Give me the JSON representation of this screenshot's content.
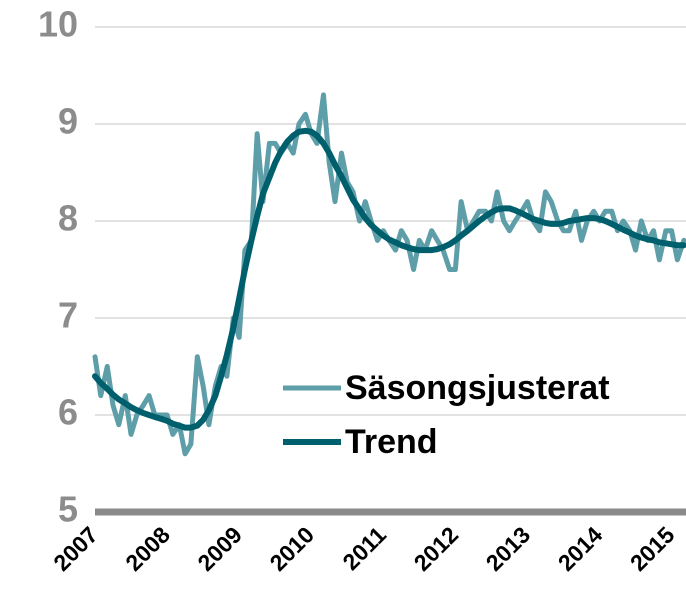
{
  "chart_data": {
    "type": "line",
    "x": [
      2007,
      2007.08,
      2007.17,
      2007.25,
      2007.33,
      2007.42,
      2007.5,
      2007.58,
      2007.67,
      2007.75,
      2007.83,
      2007.92,
      2008,
      2008.08,
      2008.17,
      2008.25,
      2008.33,
      2008.42,
      2008.5,
      2008.58,
      2008.67,
      2008.75,
      2008.83,
      2008.92,
      2009,
      2009.08,
      2009.17,
      2009.25,
      2009.33,
      2009.42,
      2009.5,
      2009.58,
      2009.67,
      2009.75,
      2009.83,
      2009.92,
      2010,
      2010.08,
      2010.17,
      2010.25,
      2010.33,
      2010.42,
      2010.5,
      2010.58,
      2010.67,
      2010.75,
      2010.83,
      2010.92,
      2011,
      2011.08,
      2011.17,
      2011.25,
      2011.33,
      2011.42,
      2011.5,
      2011.58,
      2011.67,
      2011.75,
      2011.83,
      2011.92,
      2012,
      2012.08,
      2012.17,
      2012.25,
      2012.33,
      2012.42,
      2012.5,
      2012.58,
      2012.67,
      2012.75,
      2012.83,
      2012.92,
      2013,
      2013.08,
      2013.17,
      2013.25,
      2013.33,
      2013.42,
      2013.5,
      2013.58,
      2013.67,
      2013.75,
      2013.83,
      2013.92,
      2014,
      2014.08,
      2014.17,
      2014.25,
      2014.33,
      2014.42,
      2014.5,
      2014.58,
      2014.67,
      2014.75,
      2014.83,
      2014.92,
      2015,
      2015.08,
      2015.17
    ],
    "series": [
      {
        "name": "Säsongsjusterat",
        "color": "#5e9ea9",
        "values": [
          6.6,
          6.2,
          6.5,
          6.1,
          5.9,
          6.2,
          5.8,
          6.0,
          6.1,
          6.2,
          6.0,
          6.0,
          6.0,
          5.8,
          5.9,
          5.6,
          5.7,
          6.6,
          6.3,
          5.9,
          6.3,
          6.5,
          6.4,
          7.0,
          6.8,
          7.7,
          7.8,
          8.9,
          8.2,
          8.8,
          8.8,
          8.7,
          8.8,
          8.7,
          9.0,
          9.1,
          8.9,
          8.8,
          9.3,
          8.6,
          8.2,
          8.7,
          8.4,
          8.3,
          8.0,
          8.2,
          8.0,
          7.8,
          7.9,
          7.8,
          7.7,
          7.9,
          7.8,
          7.5,
          7.8,
          7.7,
          7.9,
          7.8,
          7.7,
          7.5,
          7.5,
          8.2,
          7.9,
          8.0,
          8.1,
          8.1,
          8.0,
          8.3,
          8.0,
          7.9,
          8.0,
          8.1,
          8.2,
          8.0,
          7.9,
          8.3,
          8.2,
          8.0,
          7.9,
          7.9,
          8.1,
          7.8,
          8.0,
          8.1,
          8.0,
          8.1,
          8.1,
          7.9,
          8.0,
          7.9,
          7.7,
          8.0,
          7.8,
          7.9,
          7.6,
          7.9,
          7.9,
          7.6,
          7.8
        ]
      },
      {
        "name": "Trend",
        "color": "#005f6c",
        "values": [
          6.4,
          6.33,
          6.27,
          6.21,
          6.16,
          6.12,
          6.08,
          6.05,
          6.02,
          6.0,
          5.98,
          5.96,
          5.94,
          5.91,
          5.89,
          5.87,
          5.87,
          5.89,
          5.95,
          6.05,
          6.2,
          6.4,
          6.62,
          6.9,
          7.2,
          7.5,
          7.8,
          8.05,
          8.28,
          8.45,
          8.6,
          8.72,
          8.82,
          8.88,
          8.92,
          8.93,
          8.92,
          8.88,
          8.8,
          8.7,
          8.58,
          8.46,
          8.34,
          8.22,
          8.12,
          8.03,
          7.96,
          7.9,
          7.85,
          7.81,
          7.78,
          7.75,
          7.73,
          7.71,
          7.7,
          7.7,
          7.7,
          7.71,
          7.73,
          7.76,
          7.8,
          7.85,
          7.9,
          7.95,
          8.0,
          8.05,
          8.09,
          8.12,
          8.13,
          8.13,
          8.11,
          8.08,
          8.05,
          8.02,
          8.0,
          7.98,
          7.97,
          7.97,
          7.98,
          8.0,
          8.01,
          8.02,
          8.03,
          8.03,
          8.02,
          8.0,
          7.97,
          7.94,
          7.91,
          7.88,
          7.85,
          7.83,
          7.81,
          7.8,
          7.78,
          7.77,
          7.76,
          7.75,
          7.75
        ]
      }
    ],
    "xlim": [
      2007,
      2015.2
    ],
    "xticks": [
      2007,
      2008,
      2009,
      2010,
      2011,
      2012,
      2013,
      2014,
      2015
    ],
    "ylim": [
      5,
      10
    ],
    "yticks": [
      5,
      6,
      7,
      8,
      9,
      10
    ],
    "grid": true,
    "legend": "lower right"
  }
}
